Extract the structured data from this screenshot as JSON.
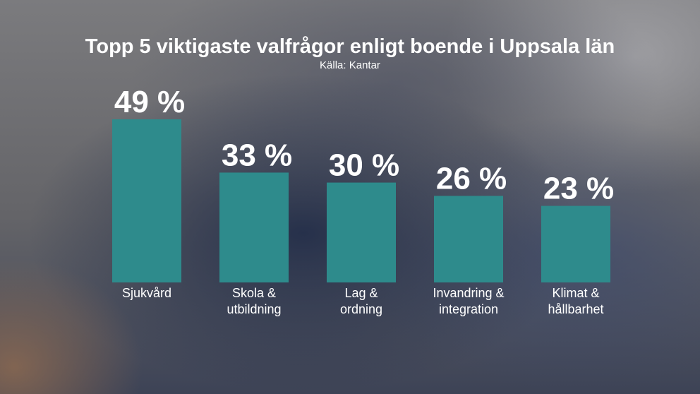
{
  "chart_data": {
    "type": "bar",
    "title": "Topp 5 viktigaste valfrågor enligt boende i Uppsala län",
    "subtitle": "Källa: Kantar",
    "categories": [
      [
        "Sjukvård"
      ],
      [
        "Skola &",
        "utbildning"
      ],
      [
        "Lag &",
        "ordning"
      ],
      [
        "Invandring &",
        "integration"
      ],
      [
        "Klimat &",
        "hållbarhet"
      ]
    ],
    "values": [
      49,
      33,
      30,
      26,
      23
    ],
    "value_labels": [
      "49 %",
      "33 %",
      "30 %",
      "26 %",
      "23 %"
    ],
    "unit": "%",
    "bar_color": "#2e8b8c",
    "text_color": "#ffffff",
    "ylim": [
      0,
      49
    ],
    "grid": false,
    "xlabel": "",
    "ylabel": ""
  }
}
